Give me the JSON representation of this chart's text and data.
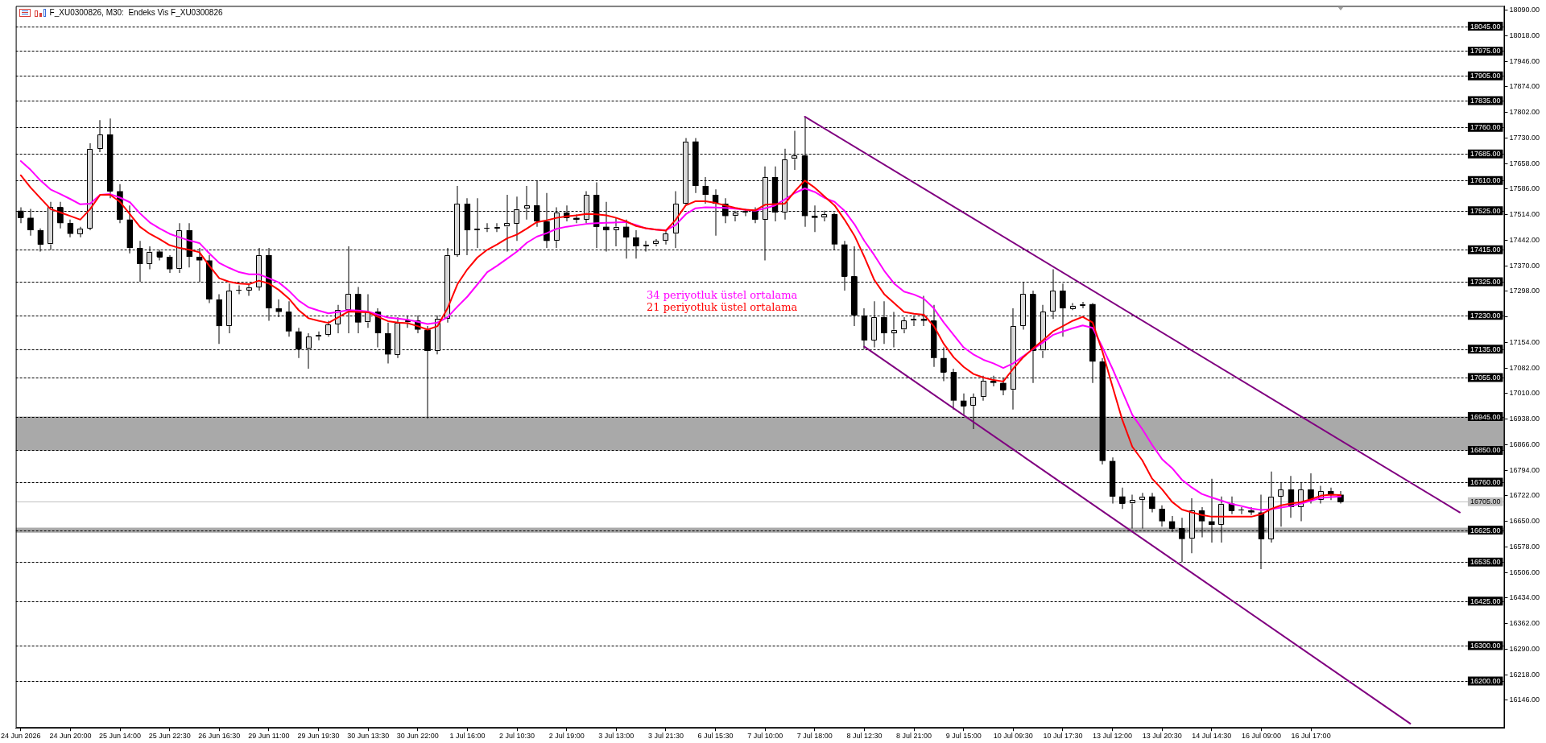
{
  "chart_data": {
    "type": "candlestick",
    "title": "F_XU0300826, M30:  Endeks Vis F_XU0300826",
    "color": "#000000",
    "grid": false,
    "legend": false,
    "categories": [
      "24 Jun 2026",
      null,
      null,
      null,
      null,
      "24 Jun 20:00",
      null,
      null,
      null,
      null,
      "25 Jun 14:00",
      null,
      null,
      null,
      null,
      "25 Jun 22:30",
      null,
      null,
      null,
      null,
      "26 Jun 16:30",
      null,
      null,
      null,
      null,
      "29 Jun 11:00",
      null,
      null,
      null,
      null,
      "29 Jun 19:30",
      null,
      null,
      null,
      null,
      "30 Jun 13:30",
      null,
      null,
      null,
      null,
      "30 Jun 22:00",
      null,
      null,
      null,
      null,
      "1 Jul 16:00",
      null,
      null,
      null,
      null,
      "2 Jul 10:30",
      null,
      null,
      null,
      null,
      "2 Jul 19:00",
      null,
      null,
      null,
      null,
      "3 Jul 13:00",
      null,
      null,
      null,
      null,
      "3 Jul 21:30",
      null,
      null,
      null,
      null,
      "6 Jul 15:30",
      null,
      null,
      null,
      null,
      "7 Jul 10:00",
      null,
      null,
      null,
      null,
      "7 Jul 18:00",
      null,
      null,
      null,
      null,
      "8 Jul 12:30",
      null,
      null,
      null,
      null,
      "8 Jul 21:00",
      null,
      null,
      null,
      null,
      "9 Jul 15:00",
      null,
      null,
      null,
      null,
      "10 Jul 09:30",
      null,
      null,
      null,
      null,
      "10 Jul 17:30",
      null,
      null,
      null,
      null,
      "13 Jul 12:00",
      null,
      null,
      null,
      null,
      "13 Jul 20:30",
      null,
      null,
      null,
      null,
      "14 Jul 14:30",
      null,
      null,
      null,
      null,
      "16 Jul 09:00",
      null,
      null,
      null,
      null,
      "16 Jul 17:00",
      null,
      null,
      null,
      null,
      null,
      null,
      null,
      null,
      null,
      null,
      null,
      null,
      null,
      null,
      null,
      null,
      null,
      null,
      null
    ],
    "ohlc": [
      [
        17525,
        17535,
        17490,
        17505
      ],
      [
        17505,
        17530,
        17455,
        17470
      ],
      [
        17470,
        17475,
        17410,
        17430
      ],
      [
        17430,
        17550,
        17415,
        17535
      ],
      [
        17535,
        17550,
        17475,
        17490
      ],
      [
        17490,
        17500,
        17450,
        17460
      ],
      [
        17460,
        17480,
        17450,
        17475
      ],
      [
        17475,
        17715,
        17470,
        17700
      ],
      [
        17700,
        17780,
        17690,
        17740
      ],
      [
        17740,
        17785,
        17560,
        17580
      ],
      [
        17580,
        17600,
        17490,
        17500
      ],
      [
        17500,
        17540,
        17405,
        17420
      ],
      [
        17420,
        17440,
        17325,
        17375
      ],
      [
        17375,
        17425,
        17360,
        17410
      ],
      [
        17410,
        17415,
        17385,
        17395
      ],
      [
        17395,
        17400,
        17350,
        17360
      ],
      [
        17360,
        17490,
        17350,
        17470
      ],
      [
        17470,
        17490,
        17365,
        17395
      ],
      [
        17395,
        17420,
        17325,
        17385
      ],
      [
        17385,
        17400,
        17265,
        17275
      ],
      [
        17275,
        17290,
        17150,
        17200
      ],
      [
        17200,
        17320,
        17180,
        17300
      ],
      [
        17300,
        17315,
        17290,
        17300
      ],
      [
        17300,
        17320,
        17285,
        17310
      ],
      [
        17310,
        17420,
        17300,
        17400
      ],
      [
        17400,
        17420,
        17215,
        17250
      ],
      [
        17250,
        17275,
        17225,
        17240
      ],
      [
        17240,
        17270,
        17170,
        17185
      ],
      [
        17185,
        17195,
        17110,
        17135
      ],
      [
        17135,
        17180,
        17080,
        17170
      ],
      [
        17170,
        17185,
        17160,
        17175
      ],
      [
        17175,
        17215,
        17170,
        17205
      ],
      [
        17205,
        17260,
        17180,
        17245
      ],
      [
        17245,
        17425,
        17180,
        17290
      ],
      [
        17290,
        17310,
        17180,
        17210
      ],
      [
        17210,
        17290,
        17195,
        17240
      ],
      [
        17240,
        17250,
        17140,
        17180
      ],
      [
        17180,
        17210,
        17095,
        17120
      ],
      [
        17120,
        17225,
        17110,
        17210
      ],
      [
        17210,
        17230,
        17195,
        17215
      ],
      [
        17215,
        17230,
        17180,
        17190
      ],
      [
        17190,
        17200,
        16940,
        17130
      ],
      [
        17130,
        17230,
        17120,
        17220
      ],
      [
        17220,
        17420,
        17210,
        17400
      ],
      [
        17400,
        17595,
        17395,
        17545
      ],
      [
        17545,
        17560,
        17400,
        17470
      ],
      [
        17470,
        17560,
        17420,
        17475
      ],
      [
        17475,
        17490,
        17465,
        17475
      ],
      [
        17475,
        17490,
        17465,
        17480
      ],
      [
        17480,
        17570,
        17410,
        17490
      ],
      [
        17490,
        17565,
        17440,
        17530
      ],
      [
        17530,
        17595,
        17500,
        17540
      ],
      [
        17540,
        17610,
        17480,
        17495
      ],
      [
        17495,
        17575,
        17420,
        17440
      ],
      [
        17440,
        17535,
        17420,
        17520
      ],
      [
        17520,
        17540,
        17495,
        17505
      ],
      [
        17505,
        17515,
        17490,
        17500
      ],
      [
        17500,
        17580,
        17490,
        17570
      ],
      [
        17570,
        17605,
        17420,
        17480
      ],
      [
        17480,
        17550,
        17410,
        17470
      ],
      [
        17470,
        17505,
        17425,
        17480
      ],
      [
        17480,
        17500,
        17390,
        17450
      ],
      [
        17450,
        17470,
        17390,
        17425
      ],
      [
        17425,
        17440,
        17410,
        17430
      ],
      [
        17430,
        17445,
        17425,
        17440
      ],
      [
        17440,
        17470,
        17430,
        17460
      ],
      [
        17460,
        17580,
        17420,
        17545
      ],
      [
        17545,
        17730,
        17540,
        17720
      ],
      [
        17720,
        17730,
        17575,
        17595
      ],
      [
        17595,
        17620,
        17545,
        17570
      ],
      [
        17570,
        17585,
        17455,
        17545
      ],
      [
        17545,
        17560,
        17490,
        17510
      ],
      [
        17510,
        17525,
        17495,
        17520
      ],
      [
        17520,
        17530,
        17510,
        17525
      ],
      [
        17525,
        17535,
        17490,
        17500
      ],
      [
        17500,
        17650,
        17385,
        17620
      ],
      [
        17620,
        17650,
        17495,
        17520
      ],
      [
        17520,
        17700,
        17500,
        17670
      ],
      [
        17670,
        17750,
        17640,
        17680
      ],
      [
        17680,
        17790,
        17480,
        17510
      ],
      [
        17510,
        17540,
        17465,
        17505
      ],
      [
        17505,
        17525,
        17495,
        17515
      ],
      [
        17515,
        17520,
        17415,
        17430
      ],
      [
        17430,
        17440,
        17300,
        17340
      ],
      [
        17340,
        17425,
        17200,
        17230
      ],
      [
        17230,
        17250,
        17135,
        17160
      ],
      [
        17160,
        17270,
        17140,
        17225
      ],
      [
        17225,
        17270,
        17150,
        17180
      ],
      [
        17180,
        17240,
        17140,
        17190
      ],
      [
        17190,
        17225,
        17180,
        17215
      ],
      [
        17215,
        17230,
        17200,
        17220
      ],
      [
        17220,
        17285,
        17200,
        17215
      ],
      [
        17215,
        17260,
        17085,
        17110
      ],
      [
        17110,
        17140,
        17045,
        17070
      ],
      [
        17070,
        17080,
        16965,
        16990
      ],
      [
        16990,
        17010,
        16950,
        16975
      ],
      [
        16975,
        17010,
        16910,
        17000
      ],
      [
        17000,
        17060,
        16990,
        17045
      ],
      [
        17045,
        17060,
        17030,
        17040
      ],
      [
        17040,
        17055,
        17005,
        17020
      ],
      [
        17020,
        17250,
        16965,
        17200
      ],
      [
        17200,
        17325,
        17190,
        17290
      ],
      [
        17290,
        17300,
        17040,
        17130
      ],
      [
        17130,
        17260,
        17110,
        17240
      ],
      [
        17240,
        17360,
        17220,
        17300
      ],
      [
        17300,
        17320,
        17170,
        17250
      ],
      [
        17250,
        17265,
        17245,
        17258
      ],
      [
        17258,
        17268,
        17250,
        17262
      ],
      [
        17262,
        17265,
        17040,
        17100
      ],
      [
        17100,
        17110,
        16810,
        16820
      ],
      [
        16820,
        16830,
        16700,
        16720
      ],
      [
        16720,
        16745,
        16685,
        16700
      ],
      [
        16700,
        16725,
        16630,
        16710
      ],
      [
        16710,
        16730,
        16630,
        16720
      ],
      [
        16720,
        16730,
        16675,
        16685
      ],
      [
        16685,
        16695,
        16635,
        16650
      ],
      [
        16650,
        16665,
        16620,
        16630
      ],
      [
        16630,
        16660,
        16535,
        16600
      ],
      [
        16600,
        16715,
        16560,
        16680
      ],
      [
        16680,
        16690,
        16605,
        16650
      ],
      [
        16650,
        16770,
        16590,
        16640
      ],
      [
        16640,
        16720,
        16590,
        16700
      ],
      [
        16700,
        16720,
        16670,
        16680
      ],
      [
        16680,
        16690,
        16670,
        16680
      ],
      [
        16680,
        16690,
        16668,
        16675
      ],
      [
        16675,
        16725,
        16515,
        16600
      ],
      [
        16600,
        16790,
        16590,
        16720
      ],
      [
        16720,
        16760,
        16635,
        16740
      ],
      [
        16740,
        16778,
        16660,
        16690
      ],
      [
        16690,
        16760,
        16650,
        16740
      ],
      [
        16740,
        16785,
        16700,
        16710
      ],
      [
        16710,
        16750,
        16700,
        16735
      ],
      [
        16735,
        16745,
        16710,
        16725
      ],
      [
        16725,
        16735,
        16700,
        16705
      ],
      null,
      null,
      null,
      null,
      null,
      null,
      null,
      null,
      null,
      null,
      null,
      null,
      null,
      null,
      null,
      null
    ],
    "colors": [
      "#000000",
      "#000000",
      "#000000",
      "#d8d8d8",
      "#000000",
      "#000000",
      "#d8d8d8",
      "#d8d8d8",
      "#d8d8d8",
      "#000000",
      "#000000",
      "#000000",
      "#000000",
      "#d8d8d8",
      "#000000",
      "#000000",
      "#d8d8d8",
      "#000000",
      "#000000",
      "#000000",
      "#000000",
      "#d8d8d8",
      "#d8d8d8",
      "#d8d8d8",
      "#d8d8d8",
      "#000000",
      "#000000",
      "#000000",
      "#000000",
      "#d8d8d8",
      "#d8d8d8",
      "#d8d8d8",
      "#d8d8d8",
      "#d8d8d8",
      "#000000",
      "#d8d8d8",
      "#000000",
      "#000000",
      "#d8d8d8",
      "#d8d8d8",
      "#000000",
      "#000000",
      "#d8d8d8",
      "#d8d8d8",
      "#d8d8d8",
      "#000000",
      "#d8d8d8",
      "#d8d8d8",
      "#d8d8d8",
      "#d8d8d8",
      "#d8d8d8",
      "#d8d8d8",
      "#000000",
      "#000000",
      "#d8d8d8",
      "#000000",
      "#000000",
      "#d8d8d8",
      "#000000",
      "#000000",
      "#d8d8d8",
      "#000000",
      "#000000",
      "#d8d8d8",
      "#d8d8d8",
      "#d8d8d8",
      "#d8d8d8",
      "#d8d8d8",
      "#000000",
      "#000000",
      "#000000",
      "#000000",
      "#d8d8d8",
      "#d8d8d8",
      "#000000",
      "#d8d8d8",
      "#000000",
      "#d8d8d8",
      "#d8d8d8",
      "#000000",
      "#000000",
      "#d8d8d8",
      "#000000",
      "#000000",
      "#000000",
      "#000000",
      "#d8d8d8",
      "#000000",
      "#d8d8d8",
      "#d8d8d8",
      "#d8d8d8",
      "#000000",
      "#000000",
      "#000000",
      "#000000",
      "#000000",
      "#d8d8d8",
      "#d8d8d8",
      "#000000",
      "#000000",
      "#d8d8d8",
      "#d8d8d8",
      "#000000",
      "#d8d8d8",
      "#d8d8d8",
      "#000000",
      "#d8d8d8",
      "#d8d8d8",
      "#000000",
      "#000000",
      "#000000",
      "#000000",
      "#d8d8d8",
      "#d8d8d8",
      "#000000",
      "#000000",
      "#000000",
      "#000000",
      "#d8d8d8",
      "#000000",
      "#000000",
      "#d8d8d8",
      "#000000",
      "#d8d8d8",
      "#000000",
      "#000000",
      "#d8d8d8",
      "#d8d8d8",
      "#000000",
      "#d8d8d8",
      "#000000",
      "#d8d8d8",
      "#000000",
      "#000000",
      null,
      null,
      null,
      null,
      null,
      null,
      null,
      null,
      null,
      null,
      null,
      null,
      null,
      null,
      null,
      null
    ],
    "series": [
      {
        "name": "34 periyotluk üstel ortalama",
        "type": "line",
        "color": "#ff00ff",
        "values": [
          17665,
          17640,
          17610,
          17585,
          17572,
          17558,
          17543,
          17545,
          17570,
          17572,
          17562,
          17549,
          17518,
          17492,
          17475,
          17460,
          17450,
          17441,
          17434,
          17405,
          17378,
          17364,
          17352,
          17346,
          17346,
          17335,
          17323,
          17300,
          17272,
          17253,
          17244,
          17236,
          17240,
          17245,
          17244,
          17241,
          17232,
          17224,
          17221,
          17218,
          17212,
          17206,
          17210,
          17225,
          17255,
          17283,
          17317,
          17352,
          17370,
          17390,
          17410,
          17435,
          17452,
          17462,
          17474,
          17480,
          17484,
          17488,
          17490,
          17491,
          17492,
          17493,
          17485,
          17475,
          17472,
          17470,
          17485,
          17515,
          17532,
          17535,
          17534,
          17533,
          17531,
          17528,
          17525,
          17532,
          17540,
          17557,
          17575,
          17588,
          17578,
          17561,
          17550,
          17525,
          17487,
          17440,
          17400,
          17356,
          17320,
          17297,
          17289,
          17277,
          17250,
          17210,
          17175,
          17140,
          17120,
          17105,
          17095,
          17082,
          17095,
          17115,
          17135,
          17154,
          17175,
          17185,
          17194,
          17202,
          17195,
          17140,
          17080,
          17015,
          16950,
          16910,
          16865,
          16825,
          16800,
          16767,
          16745,
          16727,
          16717,
          16708,
          16699,
          16693,
          16686,
          16682,
          16684,
          16689,
          16693,
          16700,
          16708,
          16716,
          16718,
          16720,
          null,
          null,
          null,
          null,
          null,
          null,
          null,
          null,
          null,
          null,
          null,
          null,
          null,
          null,
          null,
          null
        ]
      },
      {
        "name": "21 periyotluk üstel ortalama",
        "type": "line",
        "color": "#ff0000",
        "values": [
          17625,
          17590,
          17560,
          17530,
          17520,
          17510,
          17500,
          17530,
          17570,
          17570,
          17550,
          17515,
          17480,
          17460,
          17445,
          17428,
          17420,
          17415,
          17408,
          17370,
          17335,
          17325,
          17320,
          17318,
          17328,
          17320,
          17302,
          17278,
          17245,
          17222,
          17215,
          17209,
          17225,
          17241,
          17240,
          17239,
          17226,
          17214,
          17210,
          17208,
          17200,
          17190,
          17200,
          17250,
          17318,
          17360,
          17393,
          17415,
          17430,
          17447,
          17458,
          17475,
          17493,
          17498,
          17505,
          17509,
          17512,
          17516,
          17515,
          17512,
          17505,
          17495,
          17482,
          17476,
          17472,
          17469,
          17500,
          17540,
          17552,
          17552,
          17547,
          17540,
          17533,
          17528,
          17526,
          17542,
          17544,
          17545,
          17580,
          17610,
          17590,
          17565,
          17540,
          17500,
          17455,
          17395,
          17330,
          17290,
          17265,
          17240,
          17235,
          17232,
          17200,
          17150,
          17112,
          17085,
          17065,
          17055,
          17048,
          17044,
          17080,
          17112,
          17137,
          17160,
          17185,
          17200,
          17215,
          17226,
          17210,
          17127,
          17030,
          16935,
          16860,
          16822,
          16770,
          16740,
          16705,
          16683,
          16675,
          16668,
          16663,
          16663,
          16663,
          16663,
          16663,
          16670,
          16685,
          16695,
          16700,
          16704,
          16712,
          16722,
          16725,
          16724,
          null,
          null,
          null,
          null,
          null,
          null,
          null,
          null,
          null,
          null,
          null,
          null,
          null,
          null,
          null,
          null
        ]
      },
      {
        "type": "line",
        "color": "#800080",
        "values": [
          null,
          null,
          null,
          null,
          null,
          null,
          null,
          null,
          null,
          null,
          null,
          null,
          null,
          null,
          null,
          null,
          null,
          null,
          null,
          null,
          null,
          null,
          null,
          null,
          null,
          null,
          null,
          null,
          null,
          null,
          null,
          null,
          null,
          null,
          null,
          null,
          null,
          null,
          null,
          null,
          null,
          null,
          null,
          null,
          null,
          null,
          null,
          null,
          null,
          null,
          null,
          null,
          null,
          null,
          null,
          null,
          null,
          null,
          null,
          null,
          null,
          null,
          null,
          null,
          null,
          null,
          null,
          null,
          null,
          null,
          null,
          null,
          null,
          null,
          null,
          null,
          null,
          null,
          null,
          17790,
          null,
          null,
          null,
          null,
          null,
          null,
          null,
          null,
          null,
          null,
          null,
          null,
          null,
          null,
          null,
          null,
          null,
          null,
          null,
          null,
          null,
          null,
          null,
          null,
          null,
          null,
          null,
          null,
          null,
          null,
          null,
          null,
          null,
          null,
          null,
          null,
          null,
          null,
          null,
          null,
          null,
          null,
          null,
          null,
          null,
          null,
          null,
          null,
          null,
          null,
          null,
          null,
          null,
          null,
          null,
          null,
          null,
          null,
          null,
          null,
          null,
          null,
          null,
          null,
          null,
          16675,
          null,
          null,
          null,
          null
        ]
      },
      {
        "type": "line",
        "color": "#800080",
        "values": [
          null,
          null,
          null,
          null,
          null,
          null,
          null,
          null,
          null,
          null,
          null,
          null,
          null,
          null,
          null,
          null,
          null,
          null,
          null,
          null,
          null,
          null,
          null,
          null,
          null,
          null,
          null,
          null,
          null,
          null,
          null,
          null,
          null,
          null,
          null,
          null,
          null,
          null,
          null,
          null,
          null,
          null,
          null,
          null,
          null,
          null,
          null,
          null,
          null,
          null,
          null,
          null,
          null,
          null,
          null,
          null,
          null,
          null,
          null,
          null,
          null,
          null,
          null,
          null,
          null,
          null,
          null,
          null,
          null,
          null,
          null,
          null,
          null,
          null,
          null,
          null,
          null,
          null,
          null,
          null,
          null,
          null,
          null,
          null,
          null,
          17142,
          null,
          null,
          null,
          null,
          null,
          null,
          null,
          null,
          null,
          null,
          null,
          null,
          null,
          null,
          null,
          null,
          null,
          null,
          null,
          null,
          null,
          null,
          null,
          null,
          null,
          null,
          null,
          null,
          null,
          null,
          null,
          null,
          null,
          null,
          null,
          null,
          null,
          null,
          null,
          null,
          null,
          null,
          null,
          null,
          null,
          null,
          null,
          null,
          null,
          null,
          null,
          null,
          null,
          null,
          16080,
          null,
          null,
          null,
          null,
          null,
          null,
          null,
          null,
          null
        ]
      }
    ],
    "ylim": [
      16068,
      18102
    ],
    "yticks": [
      {
        "value": 18090,
        "label": "18090.00"
      },
      {
        "value": 18018,
        "label": "18018.00"
      },
      {
        "value": 17946,
        "label": "17946.00"
      },
      {
        "value": 17874,
        "label": "17874.00"
      },
      {
        "value": 17802,
        "label": "17802.00"
      },
      {
        "value": 17730,
        "label": "17730.00"
      },
      {
        "value": 17658,
        "label": "17658.00"
      },
      {
        "value": 17586,
        "label": "17586.00"
      },
      {
        "value": 17514,
        "label": "17514.00"
      },
      {
        "value": 17442,
        "label": "17442.00"
      },
      {
        "value": 17370,
        "label": "17370.00"
      },
      {
        "value": 17298,
        "label": "17298.00"
      },
      {
        "value": 17226,
        "label": null
      },
      {
        "value": 17154,
        "label": "17154.00"
      },
      {
        "value": 17082,
        "label": "17082.00"
      },
      {
        "value": 17010,
        "label": "17010.00"
      },
      {
        "value": 16938,
        "label": "16938.00"
      },
      {
        "value": 16866,
        "label": "16866.00"
      },
      {
        "value": 16794,
        "label": "16794.00"
      },
      {
        "value": 16722,
        "label": "16722.00"
      },
      {
        "value": 16650,
        "label": "16650.00"
      },
      {
        "value": 16578,
        "label": "16578.00"
      },
      {
        "value": 16506,
        "label": "16506.00"
      },
      {
        "value": 16434,
        "label": "16434.00"
      },
      {
        "value": 16362,
        "label": "16362.00"
      },
      {
        "value": 16290,
        "label": "16290.00"
      },
      {
        "value": 16218,
        "label": "16218.00"
      },
      {
        "value": 16146,
        "label": "16146.00"
      }
    ],
    "bands": [
      {
        "axis": "y",
        "from": 16850,
        "to": 16945,
        "color": "#a9a9a9"
      },
      {
        "axis": "y",
        "from": 16618,
        "to": 16632,
        "color": "#a9a9a9"
      }
    ],
    "ref_lines": [
      {
        "axis": "y",
        "value": 18045,
        "label": "18045.00",
        "color": "#000000",
        "line_style": "dashed"
      },
      {
        "axis": "y",
        "value": 17975,
        "label": "17975.00",
        "color": "#000000",
        "line_style": "dashed"
      },
      {
        "axis": "y",
        "value": 17905,
        "label": "17905.00",
        "color": "#000000",
        "line_style": "dashed"
      },
      {
        "axis": "y",
        "value": 17835,
        "label": "17835.00",
        "color": "#000000",
        "line_style": "dashed"
      },
      {
        "axis": "y",
        "value": 17760,
        "label": "17760.00",
        "color": "#000000",
        "line_style": "dashed"
      },
      {
        "axis": "y",
        "value": 17685,
        "label": "17685.00",
        "color": "#000000",
        "line_style": "dashed"
      },
      {
        "axis": "y",
        "value": 17610,
        "label": "17610.00",
        "color": "#000000",
        "line_style": "dashed"
      },
      {
        "axis": "y",
        "value": 17525,
        "label": "17525.00",
        "color": "#000000",
        "line_style": "dashed"
      },
      {
        "axis": "y",
        "value": 17415,
        "label": "17415.00",
        "color": "#000000",
        "line_style": "dashed"
      },
      {
        "axis": "y",
        "value": 17325,
        "label": "17325.00",
        "color": "#000000",
        "line_style": "dashed"
      },
      {
        "axis": "y",
        "value": 17230,
        "label": "17230.00",
        "color": "#000000",
        "line_style": "dashed"
      },
      {
        "axis": "y",
        "value": 17135,
        "label": "17135.00",
        "color": "#000000",
        "line_style": "dashed"
      },
      {
        "axis": "y",
        "value": 17055,
        "label": "17055.00",
        "color": "#000000",
        "line_style": "dashed"
      },
      {
        "axis": "y",
        "value": 16945,
        "label": "16945.00",
        "color": "#000000",
        "line_style": "dashed"
      },
      {
        "axis": "y",
        "value": 16850,
        "label": "16850.00",
        "color": "#000000",
        "line_style": "dashed"
      },
      {
        "axis": "y",
        "value": 16760,
        "label": "16760.00",
        "color": "#000000",
        "line_style": "dashed"
      },
      {
        "axis": "y",
        "value": 16705,
        "label": "16705.00",
        "color": "#c0c0c0",
        "line_style": "solid"
      },
      {
        "axis": "y",
        "value": 16625,
        "label": "16625.00",
        "color": "#000000",
        "line_style": "dashed"
      },
      {
        "axis": "y",
        "value": 16535,
        "label": "16535.00",
        "color": "#000000",
        "line_style": "dashed"
      },
      {
        "axis": "y",
        "value": 16425,
        "label": "16425.00",
        "color": "#000000",
        "line_style": "dashed"
      },
      {
        "axis": "y",
        "value": 16300,
        "label": "16300.00",
        "color": "#000000",
        "line_style": "dashed"
      },
      {
        "axis": "y",
        "value": 16200,
        "label": "16200.00",
        "color": "#000000",
        "line_style": "dashed"
      }
    ]
  }
}
